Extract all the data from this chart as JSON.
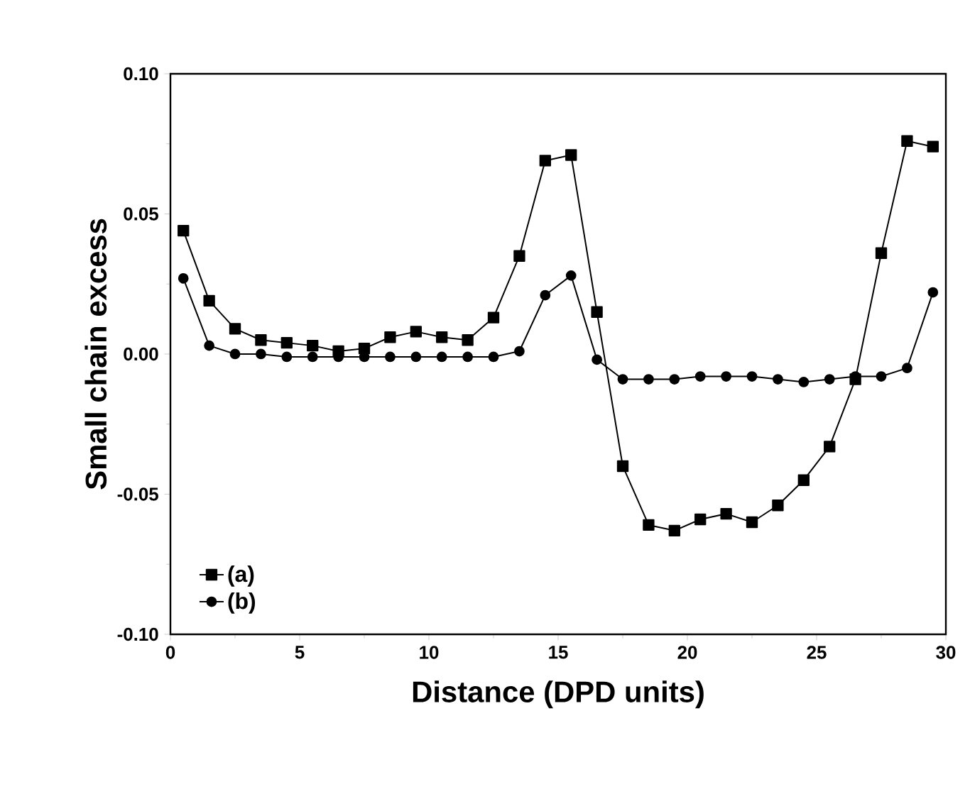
{
  "chart_data": {
    "type": "line",
    "xlabel": "Distance (DPD units)",
    "ylabel": "Small chain excess",
    "x": [
      0.5,
      1.5,
      2.5,
      3.5,
      4.5,
      5.5,
      6.5,
      7.5,
      8.5,
      9.5,
      10.5,
      11.5,
      12.5,
      13.5,
      14.5,
      15.5,
      16.5,
      17.5,
      18.5,
      19.5,
      20.5,
      21.5,
      22.5,
      23.5,
      24.5,
      25.5,
      26.5,
      27.5,
      28.5,
      29.5
    ],
    "series": [
      {
        "name": "(a)",
        "color": "#000000",
        "marker": "square",
        "values": [
          0.044,
          0.019,
          0.009,
          0.005,
          0.004,
          0.003,
          0.001,
          0.002,
          0.006,
          0.008,
          0.006,
          0.005,
          0.013,
          0.035,
          0.069,
          0.071,
          0.015,
          -0.04,
          -0.061,
          -0.063,
          -0.059,
          -0.057,
          -0.06,
          -0.054,
          -0.045,
          -0.033,
          -0.009,
          0.036,
          0.076,
          0.074
        ]
      },
      {
        "name": "(b)",
        "color": "#000000",
        "marker": "circle",
        "values": [
          0.027,
          0.003,
          0.0,
          0.0,
          -0.001,
          -0.001,
          -0.001,
          -0.001,
          -0.001,
          -0.001,
          -0.001,
          -0.001,
          -0.001,
          0.001,
          0.021,
          0.028,
          -0.002,
          -0.009,
          -0.009,
          -0.009,
          -0.008,
          -0.008,
          -0.008,
          -0.009,
          -0.01,
          -0.009,
          -0.008,
          -0.008,
          -0.005,
          0.022
        ]
      }
    ],
    "xlim": [
      0,
      30
    ],
    "xticks": [
      0,
      5,
      10,
      15,
      20,
      25,
      30
    ],
    "ylim": [
      -0.1,
      0.1
    ],
    "yticks": [
      {
        "value": -0.1,
        "label": "-0.10"
      },
      {
        "value": -0.05,
        "label": "-0.05"
      },
      {
        "value": 0,
        "label": "0.00"
      },
      {
        "value": 0.05,
        "label": "0.05"
      },
      {
        "value": 0.1,
        "label": "0.10"
      }
    ],
    "legend": "bottom left",
    "grid": false,
    "line_style": "solid"
  }
}
